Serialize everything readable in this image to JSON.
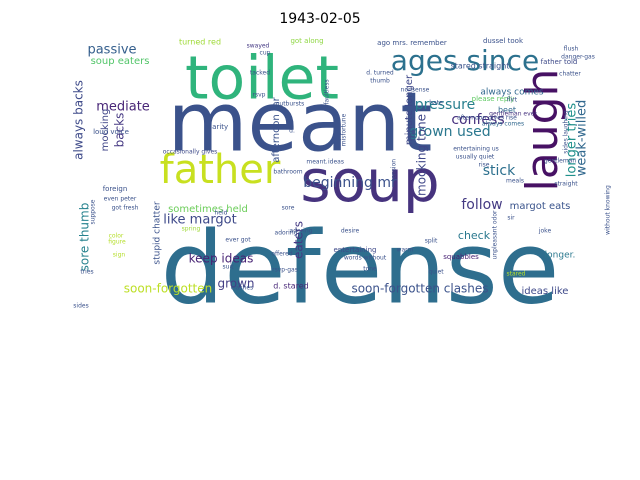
{
  "title": "1943-02-05",
  "words": [
    {
      "text": "defense",
      "color": "#2e6e8e"
    },
    {
      "text": "meant",
      "color": "#3b528b"
    },
    {
      "text": "soup",
      "color": "#46337e"
    },
    {
      "text": "toilet",
      "color": "#2fb47c"
    },
    {
      "text": "father",
      "color": "#c8e020"
    },
    {
      "text": "laugh",
      "color": "#471164"
    },
    {
      "text": "ages since",
      "color": "#2c718e"
    },
    {
      "text": "grown used",
      "color": "#2a778e"
    },
    {
      "text": "pressure",
      "color": "#277f8e"
    },
    {
      "text": "confess",
      "color": "#46307e"
    },
    {
      "text": "beginning mr",
      "color": "#3b518b"
    },
    {
      "text": "soon-forgotten clashes",
      "color": "#3b528b"
    },
    {
      "text": "soon-forgotten",
      "color": "#bddf26"
    },
    {
      "text": "like margot",
      "color": "#3e4989"
    },
    {
      "text": "sore thumb",
      "color": "#26828e"
    },
    {
      "text": "follow",
      "color": "#443a83"
    },
    {
      "text": "stick",
      "color": "#2d708e"
    },
    {
      "text": "passive",
      "color": "#355f8d"
    },
    {
      "text": "mediate",
      "color": "#482677"
    },
    {
      "text": "weak-willed",
      "color": "#31688e"
    },
    {
      "text": "longer tries",
      "color": "#21918c"
    },
    {
      "text": "always backs",
      "color": "#3e4a89"
    },
    {
      "text": "mocking tone",
      "color": "#3f4788"
    },
    {
      "text": "keep ideas",
      "color": "#482475"
    },
    {
      "text": "grown",
      "color": "#433e85"
    },
    {
      "text": "soup eaters",
      "color": "#52c569"
    },
    {
      "text": "sometimes held",
      "color": "#6ccd5a"
    },
    {
      "text": "margot eats",
      "color": "#3a548c"
    },
    {
      "text": "backs",
      "color": "#453882"
    },
    {
      "text": "ideas like",
      "color": "#3e4989"
    },
    {
      "text": "check",
      "color": "#2a788e"
    },
    {
      "text": "mocking",
      "color": "#404688"
    },
    {
      "text": "afternoon mr",
      "color": "#3b528b"
    },
    {
      "text": "minute longer",
      "color": "#3f4889"
    },
    {
      "text": "always comes",
      "color": "#31688e"
    },
    {
      "text": "stupid chatter",
      "color": "#3b528b"
    },
    {
      "text": "eaters",
      "color": "#443983"
    },
    {
      "text": "turned red",
      "color": "#a0da39"
    },
    {
      "text": "stared straight",
      "color": "#3a538b"
    },
    {
      "text": "please reply",
      "color": "#5ec962"
    },
    {
      "text": "longer.",
      "color": "#2a788e"
    },
    {
      "text": "d. stared",
      "color": "#482878"
    },
    {
      "text": "beet",
      "color": "#31688e"
    },
    {
      "text": "foreign",
      "color": "#3b528b"
    },
    {
      "text": "entertaining",
      "color": "#3e4989"
    },
    {
      "text": "squabbles",
      "color": "#482173"
    },
    {
      "text": "gentleman ever",
      "color": "#46327e"
    },
    {
      "text": "hilarity",
      "color": "#3b528b"
    },
    {
      "text": "occasionally gives",
      "color": "#3e4a89"
    },
    {
      "text": "loud voice",
      "color": "#3b528b"
    },
    {
      "text": "always comes",
      "color": "#31688e"
    },
    {
      "text": "spring",
      "color": "#a0da39"
    },
    {
      "text": "ever got",
      "color": "#3b528b"
    },
    {
      "text": "dussel took",
      "color": "#3b528b"
    },
    {
      "text": "father told",
      "color": "#3e4a89"
    },
    {
      "text": "ago mrs. remember",
      "color": "#3b528b"
    },
    {
      "text": "got along",
      "color": "#8fd744"
    },
    {
      "text": "swayed",
      "color": "#443983"
    },
    {
      "text": "cup",
      "color": "#3b528b"
    },
    {
      "text": "tacked",
      "color": "#3b528b"
    },
    {
      "text": "rsvp",
      "color": "#3b528b"
    },
    {
      "text": "outbursts",
      "color": "#3b528b"
    },
    {
      "text": "meant.",
      "color": "#3b528b"
    },
    {
      "text": "ideas",
      "color": "#3b528b"
    },
    {
      "text": "flush",
      "color": "#3b528b"
    },
    {
      "text": "danger-gas",
      "color": "#3b528b"
    },
    {
      "text": "chatter",
      "color": "#3b528b"
    },
    {
      "text": "flirt",
      "color": "#3b528b"
    },
    {
      "text": "entertaining us",
      "color": "#3b528b"
    },
    {
      "text": "usually quiet",
      "color": "#3b528b"
    },
    {
      "text": "rise",
      "color": "#3b528b"
    },
    {
      "text": "meals",
      "color": "#3b528b"
    },
    {
      "text": "straight",
      "color": "#3b528b"
    },
    {
      "text": "sir",
      "color": "#3b528b"
    },
    {
      "text": "joke",
      "color": "#3b528b"
    },
    {
      "text": "stared",
      "color": "#b5de2b"
    },
    {
      "text": "suit",
      "color": "#3b528b"
    },
    {
      "text": "rsvp-gas",
      "color": "#3b528b"
    },
    {
      "text": "offered",
      "color": "#3b528b"
    },
    {
      "text": "adoring",
      "color": "#3b528b"
    },
    {
      "text": "desire",
      "color": "#3b528b"
    },
    {
      "text": "words without",
      "color": "#3b528b"
    },
    {
      "text": "nonsense",
      "color": "#3b528b"
    },
    {
      "text": "hate",
      "color": "#3b528b"
    },
    {
      "text": "d. turned",
      "color": "#3b528b"
    },
    {
      "text": "thumb",
      "color": "#3b528b"
    },
    {
      "text": "tone",
      "color": "#3b528b"
    },
    {
      "text": "quiet",
      "color": "#3b528b"
    },
    {
      "text": "split",
      "color": "#3b528b"
    },
    {
      "text": "warm",
      "color": "#3b528b"
    },
    {
      "text": "clashes",
      "color": "#3b528b"
    },
    {
      "text": "sore",
      "color": "#3b528b"
    },
    {
      "text": "bathroom",
      "color": "#3b528b"
    },
    {
      "text": "held",
      "color": "#3b528b"
    },
    {
      "text": "tries",
      "color": "#3b528b"
    },
    {
      "text": "sides",
      "color": "#3b528b"
    },
    {
      "text": "figure",
      "color": "#b5de2b"
    },
    {
      "text": "color",
      "color": "#b5de2b"
    },
    {
      "text": "sign",
      "color": "#b5de2b"
    },
    {
      "text": "got fresh",
      "color": "#3b528b"
    },
    {
      "text": "even peter",
      "color": "#3b528b"
    },
    {
      "text": "suppose",
      "color": "#3b528b"
    },
    {
      "text": "d.",
      "color": "#3b528b"
    },
    {
      "text": "misfortune",
      "color": "#3b528b"
    },
    {
      "text": "afternoon gives rise",
      "color": "#3b528b"
    },
    {
      "text": "adoring",
      "color": "#3b528b"
    },
    {
      "text": "faultless",
      "color": "#3b528b"
    },
    {
      "text": "tension",
      "color": "#3b528b"
    },
    {
      "text": "unpleasant odor",
      "color": "#3b528b"
    },
    {
      "text": "without knowing",
      "color": "#3b528b"
    },
    {
      "text": "gentleman",
      "color": "#3b528b"
    },
    {
      "text": "sides laughing",
      "color": "#3b528b"
    }
  ]
}
